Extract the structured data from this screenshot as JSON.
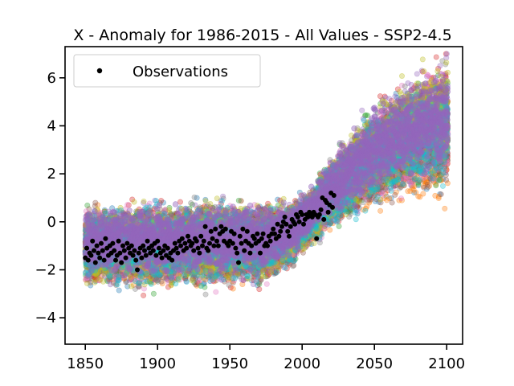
{
  "chart_data": {
    "type": "scatter",
    "title": "X - Anomaly for 1986-2015 - All Values - SSP2-4.5",
    "xlabel": "",
    "ylabel": "",
    "xlim": [
      1836,
      2111
    ],
    "ylim": [
      -5.1,
      7.3
    ],
    "x_ticks": [
      1850,
      1900,
      1950,
      2000,
      2050,
      2100
    ],
    "y_ticks": [
      -4,
      -2,
      0,
      2,
      4,
      6
    ],
    "x_tick_labels": [
      "1850",
      "1900",
      "1950",
      "2000",
      "2050",
      "2100"
    ],
    "y_tick_labels": [
      "−4",
      "−2",
      "0",
      "2",
      "4",
      "6"
    ],
    "legend": {
      "position": "top-left",
      "entries": [
        "Observations"
      ]
    },
    "series": [
      {
        "name": "Observations",
        "color": "#000000",
        "x": [
          1850,
          1851,
          1852,
          1853,
          1854,
          1855,
          1856,
          1857,
          1858,
          1859,
          1860,
          1861,
          1862,
          1863,
          1864,
          1865,
          1866,
          1867,
          1868,
          1869,
          1870,
          1871,
          1872,
          1873,
          1874,
          1875,
          1876,
          1877,
          1878,
          1879,
          1880,
          1881,
          1882,
          1883,
          1884,
          1885,
          1886,
          1887,
          1888,
          1889,
          1890,
          1891,
          1892,
          1893,
          1894,
          1895,
          1896,
          1897,
          1898,
          1899,
          1900,
          1901,
          1902,
          1903,
          1904,
          1905,
          1906,
          1907,
          1908,
          1909,
          1910,
          1911,
          1912,
          1913,
          1914,
          1915,
          1916,
          1917,
          1918,
          1919,
          1920,
          1921,
          1922,
          1923,
          1924,
          1925,
          1926,
          1927,
          1928,
          1929,
          1930,
          1931,
          1932,
          1933,
          1934,
          1935,
          1936,
          1937,
          1938,
          1939,
          1940,
          1941,
          1942,
          1943,
          1944,
          1945,
          1946,
          1947,
          1948,
          1949,
          1950,
          1951,
          1952,
          1953,
          1954,
          1955,
          1956,
          1957,
          1958,
          1959,
          1960,
          1961,
          1962,
          1963,
          1964,
          1965,
          1966,
          1967,
          1968,
          1969,
          1970,
          1971,
          1972,
          1973,
          1974,
          1975,
          1976,
          1977,
          1978,
          1979,
          1980,
          1981,
          1982,
          1983,
          1984,
          1985,
          1986,
          1987,
          1988,
          1989,
          1990,
          1991,
          1992,
          1993,
          1994,
          1995,
          1996,
          1997,
          1998,
          1999,
          2000,
          2001,
          2002,
          2003,
          2004,
          2005,
          2006,
          2007,
          2008,
          2009,
          2010,
          2011,
          2012,
          2013,
          2014,
          2015,
          2016,
          2017,
          2018,
          2019,
          2020,
          2021,
          2022
        ],
        "y": [
          -1.5,
          -1.1,
          -1.6,
          -1.3,
          -1.4,
          -0.8,
          -1.2,
          -1.7,
          -1.0,
          -1.3,
          -1.5,
          -0.9,
          -1.2,
          -1.6,
          -0.7,
          -1.1,
          -1.4,
          -1.0,
          -1.3,
          -0.9,
          -1.2,
          -1.6,
          -1.4,
          -0.8,
          -1.3,
          -1.7,
          -1.0,
          -1.2,
          -1.5,
          -0.9,
          -1.1,
          -1.3,
          -1.0,
          -1.4,
          -1.2,
          -1.6,
          -2.0,
          -1.3,
          -1.1,
          -1.5,
          -1.0,
          -1.2,
          -1.4,
          -0.8,
          -1.1,
          -1.3,
          -1.0,
          -1.2,
          -0.9,
          -1.4,
          -0.8,
          -1.1,
          -1.3,
          -1.5,
          -1.2,
          -1.0,
          -1.4,
          -1.1,
          -1.5,
          -1.3,
          -1.6,
          -1.2,
          -0.9,
          -1.1,
          -1.3,
          -0.8,
          -1.0,
          -0.7,
          -1.2,
          -0.9,
          -1.1,
          -0.6,
          -0.8,
          -1.0,
          -0.9,
          -1.2,
          -0.7,
          -0.8,
          -1.1,
          -1.3,
          -0.6,
          -1.0,
          -0.8,
          -0.2,
          -1.1,
          -1.2,
          -0.9,
          -0.4,
          -0.7,
          -1.0,
          -0.3,
          -0.8,
          -1.0,
          -0.5,
          -0.2,
          -0.4,
          -0.8,
          -0.3,
          -0.9,
          -1.0,
          -0.8,
          -0.4,
          -0.9,
          -0.5,
          -1.1,
          -1.3,
          -1.7,
          -0.6,
          -0.9,
          -0.3,
          -1.2,
          -0.8,
          -0.4,
          -0.9,
          -1.3,
          -1.0,
          -0.6,
          -0.7,
          -0.9,
          -0.5,
          -0.8,
          -1.3,
          -0.7,
          -0.5,
          -1.0,
          -0.9,
          -1.0,
          -0.6,
          -0.8,
          -0.5,
          -0.3,
          -0.5,
          -0.7,
          -0.1,
          -0.6,
          -0.4,
          -0.2,
          0.0,
          0.2,
          -0.1,
          -0.4,
          -0.6,
          -0.2,
          0.1,
          0.0,
          -0.1,
          0.3,
          0.2,
          0.0,
          0.4,
          0.3,
          -0.1,
          0.1,
          0.3,
          0.2,
          0.4,
          0.3,
          0.2,
          0.4,
          0.3,
          -0.7,
          0.2,
          0.3,
          0.5,
          1.0,
          0.1,
          0.9,
          0.8,
          0.4,
          0.7,
          1.2,
          0.6,
          1.1
        ]
      }
    ],
    "ensemble": {
      "note": "Many model ensemble members drawn as semi-transparent scatter points covering 1850-2100",
      "colors": [
        "#1f77b4",
        "#ff7f0e",
        "#2ca02c",
        "#d62728",
        "#9467bd",
        "#8c564b",
        "#e377c2",
        "#7f7f7f",
        "#bcbd22",
        "#17becf"
      ],
      "final_color": "#9467bd",
      "year_range": [
        1850,
        2100
      ],
      "mean_profile": {
        "years": [
          1850,
          1900,
          1950,
          1975,
          1990,
          2000,
          2010,
          2020,
          2030,
          2040,
          2050,
          2060,
          2070,
          2080,
          2090,
          2100
        ],
        "mean": [
          -1.0,
          -1.0,
          -0.9,
          -0.9,
          -0.6,
          -0.1,
          0.5,
          1.2,
          1.7,
          2.3,
          2.8,
          3.2,
          3.5,
          3.8,
          4.0,
          4.2
        ],
        "spread": [
          0.9,
          0.95,
          0.95,
          0.9,
          0.75,
          0.65,
          0.7,
          0.8,
          0.9,
          1.0,
          1.1,
          1.15,
          1.2,
          1.25,
          1.3,
          1.35
        ]
      }
    }
  }
}
